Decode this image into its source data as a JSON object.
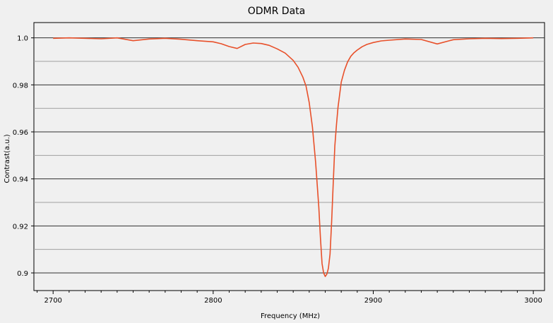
{
  "chart_data": {
    "type": "line",
    "title": "ODMR Data",
    "xlabel": "Frequency (MHz)",
    "ylabel": "Contrast(a.u.)",
    "xlim": [
      2688,
      3007
    ],
    "ylim": [
      0.8925,
      1.0065
    ],
    "x_ticks": [
      2700,
      2800,
      2900,
      3000
    ],
    "x_tick_labels": [
      "2700",
      "2800",
      "2900",
      "3000"
    ],
    "y_ticks": [
      0.9,
      0.92,
      0.94,
      0.96,
      0.98,
      1.0
    ],
    "y_tick_labels": [
      "0.9",
      "0.92",
      "0.94",
      "0.96",
      "0.98",
      "1.0"
    ],
    "y_minor_gridlines": [
      0.91,
      0.93,
      0.95,
      0.97,
      0.99
    ],
    "grid": true,
    "series": [
      {
        "color": "#e8502a",
        "x": [
          2700,
          2710,
          2720,
          2730,
          2740,
          2750,
          2760,
          2770,
          2780,
          2790,
          2800,
          2805,
          2810,
          2815,
          2820,
          2825,
          2830,
          2835,
          2840,
          2845,
          2850,
          2853,
          2856,
          2858,
          2860,
          2862,
          2864,
          2866,
          2867,
          2868,
          2869,
          2870,
          2871,
          2872,
          2873,
          2874,
          2875,
          2876,
          2877,
          2878,
          2880,
          2882,
          2884,
          2886,
          2888,
          2890,
          2893,
          2896,
          2900,
          2905,
          2910,
          2920,
          2930,
          2940,
          2950,
          2960,
          2970,
          2980,
          2990,
          3000
        ],
        "y": [
          0.9998,
          1.0,
          0.9998,
          0.9996,
          1.0,
          0.9988,
          0.9995,
          0.9998,
          0.9994,
          0.9988,
          0.9983,
          0.9975,
          0.9963,
          0.9955,
          0.9972,
          0.9978,
          0.9976,
          0.9968,
          0.9953,
          0.9935,
          0.9904,
          0.9875,
          0.9833,
          0.9795,
          0.9725,
          0.962,
          0.947,
          0.928,
          0.915,
          0.904,
          0.9,
          0.8985,
          0.8995,
          0.902,
          0.908,
          0.922,
          0.938,
          0.954,
          0.963,
          0.9705,
          0.9812,
          0.9862,
          0.9898,
          0.9922,
          0.9937,
          0.9948,
          0.9962,
          0.9972,
          0.998,
          0.9987,
          0.999,
          0.9995,
          0.9993,
          0.9974,
          0.9992,
          0.9996,
          0.9998,
          0.9997,
          0.9998,
          1.0
        ]
      }
    ]
  }
}
